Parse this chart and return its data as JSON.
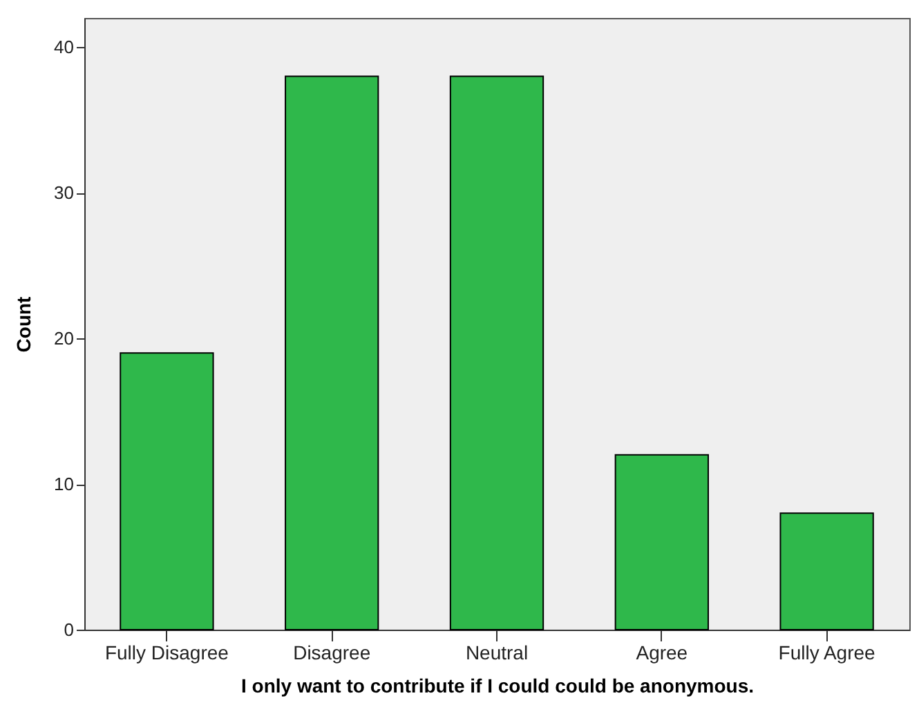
{
  "chart_data": {
    "type": "bar",
    "xlabel": "I only want to contribute if I could could be anonymous.",
    "ylabel": "Count",
    "categories": [
      "Fully Disagree",
      "Disagree",
      "Neutral",
      "Agree",
      "Fully Agree"
    ],
    "values": [
      19,
      38,
      38,
      12,
      8
    ],
    "color": "#2fb84b",
    "ylim": [
      0,
      42
    ],
    "yticks": [
      0,
      10,
      20,
      30,
      40
    ],
    "grid": false
  }
}
